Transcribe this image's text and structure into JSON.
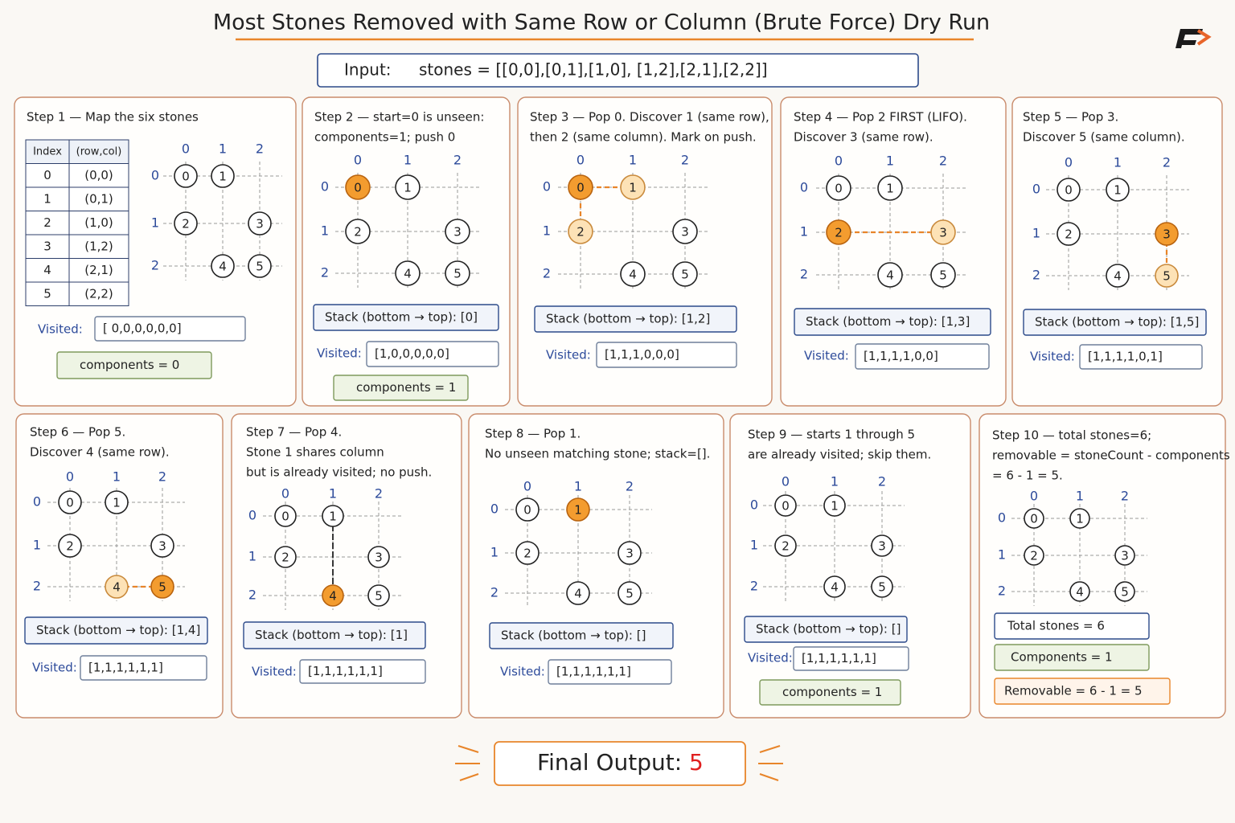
{
  "title": "Most Stones Removed with Same Row or Column (Brute Force) Dry Run",
  "input": {
    "label": "Input:",
    "value": "stones = [[0,0],[0,1],[1,0], [1,2],[2,1],[2,2]]"
  },
  "grid": {
    "columns": [
      "0",
      "1",
      "2"
    ],
    "rows": [
      "0",
      "1",
      "2"
    ],
    "stones": [
      "0",
      "1",
      "2",
      "3",
      "4",
      "5"
    ]
  },
  "table": {
    "header": [
      "Index",
      "(row,col)"
    ],
    "rows": [
      [
        "0",
        "(0,0)"
      ],
      [
        "1",
        "(0,1)"
      ],
      [
        "2",
        "(1,0)"
      ],
      [
        "3",
        "(1,2)"
      ],
      [
        "4",
        "(2,1)"
      ],
      [
        "5",
        "(2,2)"
      ]
    ]
  },
  "visited_label": "Visited:",
  "steps": [
    {
      "lines": [
        "Step 1 — Map the six stones"
      ],
      "visited": "[ 0,0,0,0,0,0]",
      "components": "components = 0"
    },
    {
      "lines": [
        "Step 2 — start=0 is unseen:",
        "components=1; push 0"
      ],
      "stack": "Stack (bottom → top): [0]",
      "visited": "[1,0,0,0,0,0]",
      "components": "components = 1"
    },
    {
      "lines": [
        "Step 3 — Pop 0. Discover 1 (same row),",
        "then 2 (same column). Mark on push."
      ],
      "stack": "Stack (bottom → top): [1,2]",
      "visited": "[1,1,1,0,0,0]"
    },
    {
      "lines": [
        "Step 4 — Pop 2 FIRST (LIFO).",
        "Discover 3 (same row)."
      ],
      "stack": "Stack (bottom → top): [1,3]",
      "visited": "[1,1,1,1,0,0]"
    },
    {
      "lines": [
        "Step 5 — Pop 3.",
        "Discover 5 (same column)."
      ],
      "stack": "Stack (bottom → top): [1,5]",
      "visited": "[1,1,1,1,0,1]"
    },
    {
      "lines": [
        "Step 6 — Pop 5.",
        "Discover 4 (same row)."
      ],
      "stack": "Stack (bottom → top): [1,4]",
      "visited": "[1,1,1,1,1,1]"
    },
    {
      "lines": [
        "Step 7 — Pop 4.",
        "Stone 1 shares column",
        "but is already visited; no push."
      ],
      "stack": "Stack (bottom → top): [1]",
      "visited": "[1,1,1,1,1,1]"
    },
    {
      "lines": [
        "Step 8 — Pop 1.",
        "No unseen matching stone; stack=[]."
      ],
      "stack": "Stack (bottom → top): []",
      "visited": "[1,1,1,1,1,1]"
    },
    {
      "lines": [
        "Step 9 — starts 1 through 5",
        "are already visited; skip them."
      ],
      "stack": "Stack (bottom → top): []",
      "visited": "[1,1,1,1,1,1]",
      "components": "components = 1"
    },
    {
      "lines": [
        "Step 10 — total stones=6;",
        "removable = stoneCount - components",
        "= 6 - 1 = 5."
      ],
      "summary": {
        "total": "Total stones = 6",
        "components": "Components = 1",
        "removable": "Removable = 6 - 1 = 5"
      }
    }
  ],
  "final": {
    "label": "Final Output:",
    "value": "5"
  }
}
